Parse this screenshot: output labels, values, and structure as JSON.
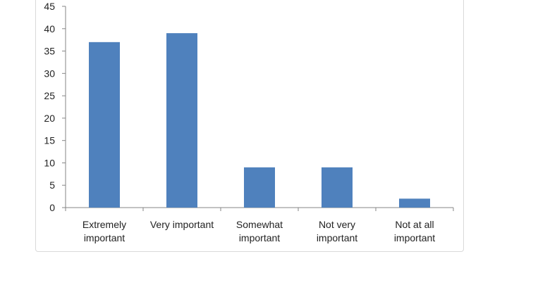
{
  "chart_data": {
    "type": "bar",
    "categories": [
      [
        "Extremely",
        "important"
      ],
      [
        "Very important"
      ],
      [
        "Somewhat",
        "important"
      ],
      [
        "Not very",
        "important"
      ],
      [
        "Not at all",
        "important"
      ]
    ],
    "values": [
      37,
      39,
      9,
      9,
      2
    ],
    "ylim": [
      0,
      45
    ],
    "yticks": [
      0,
      5,
      10,
      15,
      20,
      25,
      30,
      35,
      40,
      45
    ],
    "grid": false,
    "legend": "none",
    "bar_color": "#4f81bd",
    "axis_color": "#868686"
  }
}
